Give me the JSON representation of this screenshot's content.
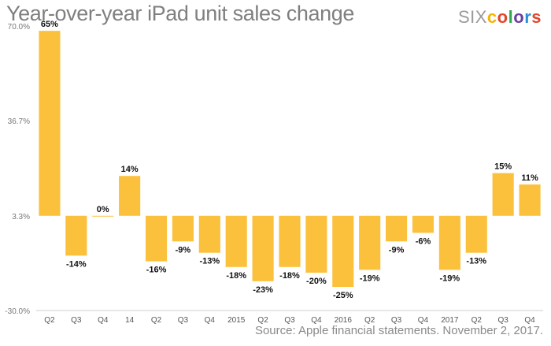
{
  "title": "Year-over-year iPad unit sales change",
  "logo": {
    "prefix": "SIX",
    "letters": [
      "c",
      "o",
      "l",
      "o",
      "r",
      "s"
    ],
    "colors": [
      "#f4b400",
      "#e2462d",
      "#2fa84f",
      "#6b3fa0",
      "#2b8fd6",
      "#e2462d"
    ]
  },
  "source": "Source: Apple financial statements. November 2, 2017.",
  "colors": {
    "bar": "#fbc13d",
    "axis": "#cfcfcf",
    "grid": "#e5e5e5"
  },
  "chart_data": {
    "type": "bar",
    "title": "Year-over-year iPad unit sales change",
    "xlabel": "",
    "ylabel": "",
    "ylim": [
      -30.0,
      70.0
    ],
    "yticks": [
      "70.0%",
      "36.7%",
      "3.3%",
      "-30.0%"
    ],
    "yticks_values": [
      70.0,
      36.7,
      3.3,
      -30.0
    ],
    "baseline": 3.3,
    "grid": false,
    "categories": [
      "Q2",
      "Q3",
      "Q4",
      "14",
      "Q2",
      "Q3",
      "Q4",
      "2015",
      "Q2",
      "Q3",
      "Q4",
      "2016",
      "Q2",
      "Q3",
      "Q4",
      "2017",
      "Q2",
      "Q3",
      "Q4"
    ],
    "values": [
      65,
      -14,
      0,
      14,
      -16,
      -9,
      -13,
      -18,
      -23,
      -18,
      -20,
      -25,
      -19,
      -9,
      -6,
      -19,
      -13,
      15,
      11
    ],
    "labels": [
      "65%",
      "-14%",
      "0%",
      "14%",
      "-16%",
      "-9%",
      "-13%",
      "-18%",
      "-23%",
      "-18%",
      "-20%",
      "-25%",
      "-19%",
      "-9%",
      "-6%",
      "-19%",
      "-13%",
      "15%",
      "11%"
    ]
  }
}
